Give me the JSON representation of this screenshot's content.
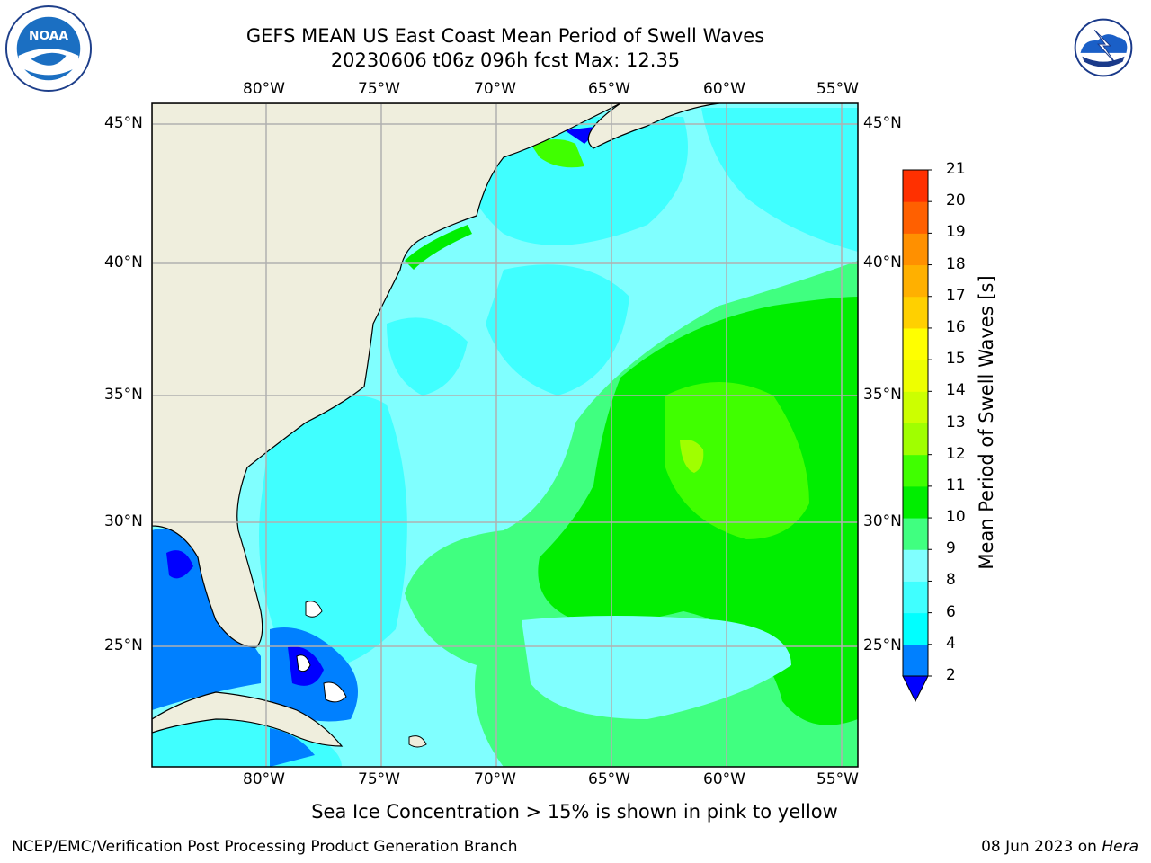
{
  "title_line1": "GEFS MEAN US East Coast Mean Period of Swell Waves",
  "title_line2": "20230606 t06z 096h fcst   Max: 12.35",
  "lon_labels": [
    "80°W",
    "75°W",
    "70°W",
    "65°W",
    "60°W",
    "55°W"
  ],
  "lat_labels": [
    "45°N",
    "40°N",
    "35°N",
    "30°N",
    "25°N"
  ],
  "colorbar": {
    "label": "Mean Period of Swell Waves [s]",
    "ticks": [
      "21",
      "20",
      "19",
      "18",
      "17",
      "16",
      "15",
      "14",
      "13",
      "12",
      "11",
      "10",
      "9",
      "8",
      "6",
      "4",
      "2"
    ],
    "colors": [
      "#0000ff",
      "#0080ff",
      "#00ffff",
      "#40ffff",
      "#80ffff",
      "#40ff80",
      "#00ee00",
      "#40ff00",
      "#a0ff00",
      "#ccff00",
      "#eeff00",
      "#ffff00",
      "#ffd000",
      "#ffb000",
      "#ff9000",
      "#ff6000",
      "#ff3000",
      "#ff0000"
    ]
  },
  "caption": "Sea Ice Concentration > 15% is shown in pink to yellow",
  "footer_left": "NCEP/EMC/Verification Post Processing Product Generation Branch",
  "footer_date": "08 Jun 2023 on ",
  "footer_host": "Hera",
  "logos": {
    "left": "noaa-logo",
    "right": "nws-logo"
  }
}
